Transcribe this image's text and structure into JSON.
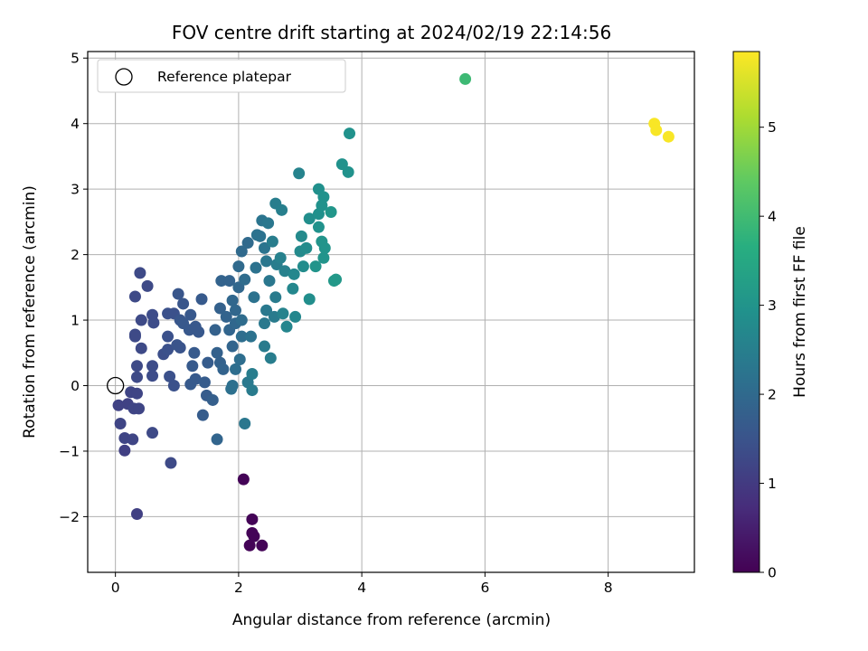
{
  "chart_data": {
    "type": "scatter",
    "title": "FOV centre drift starting at 2024/02/19 22:14:56",
    "xlabel": "Angular distance from reference (arcmin)",
    "ylabel": "Rotation from reference (arcmin)",
    "xlim": [
      -0.45,
      9.4
    ],
    "ylim": [
      -2.85,
      5.1
    ],
    "xticks": [
      0,
      2,
      4,
      6,
      8
    ],
    "yticks": [
      -2,
      -1,
      0,
      1,
      2,
      3,
      4,
      5
    ],
    "grid": true,
    "legend": {
      "position": "top-left",
      "entries": [
        "Reference platepar"
      ]
    },
    "reference_point": {
      "x": 0,
      "y": 0
    },
    "colorbar": {
      "label": "Hours from first FF file",
      "range": [
        0,
        5.85
      ],
      "ticks": [
        0,
        1,
        2,
        3,
        4,
        5
      ],
      "colormap": "viridis"
    },
    "points": [
      {
        "x": 2.08,
        "y": -1.43,
        "c": 0.05
      },
      {
        "x": 2.22,
        "y": -2.04,
        "c": 0.05
      },
      {
        "x": 2.22,
        "y": -2.25,
        "c": 0.05
      },
      {
        "x": 2.25,
        "y": -2.3,
        "c": 0.05
      },
      {
        "x": 2.18,
        "y": -2.44,
        "c": 0.05
      },
      {
        "x": 2.38,
        "y": -2.44,
        "c": 0.05
      },
      {
        "x": 0.35,
        "y": -1.96,
        "c": 1.1
      },
      {
        "x": 0.15,
        "y": -0.99,
        "c": 1.1
      },
      {
        "x": 0.9,
        "y": -1.18,
        "c": 1.3
      },
      {
        "x": 0.05,
        "y": -0.3,
        "c": 1.15
      },
      {
        "x": 0.2,
        "y": -0.28,
        "c": 1.15
      },
      {
        "x": 0.25,
        "y": -0.1,
        "c": 1.2
      },
      {
        "x": 0.35,
        "y": -0.12,
        "c": 1.2
      },
      {
        "x": 0.3,
        "y": -0.35,
        "c": 1.2
      },
      {
        "x": 0.38,
        "y": -0.35,
        "c": 1.2
      },
      {
        "x": 0.08,
        "y": -0.58,
        "c": 1.2
      },
      {
        "x": 0.15,
        "y": -0.8,
        "c": 1.2
      },
      {
        "x": 0.28,
        "y": -0.82,
        "c": 1.2
      },
      {
        "x": 0.6,
        "y": -0.72,
        "c": 1.3
      },
      {
        "x": 0.35,
        "y": 0.13,
        "c": 1.3
      },
      {
        "x": 0.35,
        "y": 0.3,
        "c": 1.3
      },
      {
        "x": 0.42,
        "y": 0.57,
        "c": 1.3
      },
      {
        "x": 0.32,
        "y": 0.78,
        "c": 1.3
      },
      {
        "x": 0.32,
        "y": 0.75,
        "c": 1.3
      },
      {
        "x": 0.42,
        "y": 1.0,
        "c": 1.3
      },
      {
        "x": 0.32,
        "y": 1.36,
        "c": 1.3
      },
      {
        "x": 0.4,
        "y": 1.72,
        "c": 1.3
      },
      {
        "x": 0.52,
        "y": 1.52,
        "c": 1.3
      },
      {
        "x": 0.6,
        "y": 1.08,
        "c": 1.35
      },
      {
        "x": 0.62,
        "y": 0.96,
        "c": 1.35
      },
      {
        "x": 0.6,
        "y": 0.3,
        "c": 1.35
      },
      {
        "x": 0.6,
        "y": 0.15,
        "c": 1.35
      },
      {
        "x": 0.78,
        "y": 0.48,
        "c": 1.4
      },
      {
        "x": 0.85,
        "y": 0.55,
        "c": 1.45
      },
      {
        "x": 0.85,
        "y": 0.75,
        "c": 1.45
      },
      {
        "x": 0.85,
        "y": 1.1,
        "c": 1.45
      },
      {
        "x": 0.95,
        "y": 1.1,
        "c": 1.45
      },
      {
        "x": 0.88,
        "y": 0.14,
        "c": 1.45
      },
      {
        "x": 0.95,
        "y": 0.0,
        "c": 1.45
      },
      {
        "x": 1.0,
        "y": 0.62,
        "c": 1.5
      },
      {
        "x": 1.05,
        "y": 0.58,
        "c": 1.5
      },
      {
        "x": 1.05,
        "y": 1.0,
        "c": 1.55
      },
      {
        "x": 1.02,
        "y": 1.4,
        "c": 1.55
      },
      {
        "x": 1.1,
        "y": 1.25,
        "c": 1.55
      },
      {
        "x": 1.1,
        "y": 0.95,
        "c": 1.6
      },
      {
        "x": 1.2,
        "y": 0.85,
        "c": 1.6
      },
      {
        "x": 1.22,
        "y": 1.08,
        "c": 1.6
      },
      {
        "x": 1.3,
        "y": 0.9,
        "c": 1.6
      },
      {
        "x": 1.35,
        "y": 0.82,
        "c": 1.6
      },
      {
        "x": 1.4,
        "y": 1.32,
        "c": 1.65
      },
      {
        "x": 1.28,
        "y": 0.5,
        "c": 1.65
      },
      {
        "x": 1.25,
        "y": 0.3,
        "c": 1.65
      },
      {
        "x": 1.22,
        "y": 0.02,
        "c": 1.65
      },
      {
        "x": 1.3,
        "y": 0.1,
        "c": 1.65
      },
      {
        "x": 1.42,
        "y": -0.45,
        "c": 1.7
      },
      {
        "x": 1.48,
        "y": -0.15,
        "c": 1.7
      },
      {
        "x": 1.45,
        "y": 0.05,
        "c": 1.7
      },
      {
        "x": 1.5,
        "y": 0.35,
        "c": 1.7
      },
      {
        "x": 1.58,
        "y": -0.22,
        "c": 1.75
      },
      {
        "x": 1.65,
        "y": -0.82,
        "c": 1.9
      },
      {
        "x": 1.62,
        "y": 0.85,
        "c": 1.8
      },
      {
        "x": 1.65,
        "y": 0.5,
        "c": 1.8
      },
      {
        "x": 1.7,
        "y": 0.35,
        "c": 1.8
      },
      {
        "x": 1.75,
        "y": 0.25,
        "c": 1.85
      },
      {
        "x": 1.7,
        "y": 1.18,
        "c": 1.8
      },
      {
        "x": 1.72,
        "y": 1.6,
        "c": 1.85
      },
      {
        "x": 1.85,
        "y": 1.6,
        "c": 1.85
      },
      {
        "x": 1.8,
        "y": 1.05,
        "c": 1.85
      },
      {
        "x": 1.85,
        "y": 0.85,
        "c": 1.9
      },
      {
        "x": 1.9,
        "y": 0.6,
        "c": 1.9
      },
      {
        "x": 1.9,
        "y": 1.3,
        "c": 1.95
      },
      {
        "x": 1.95,
        "y": 1.15,
        "c": 1.95
      },
      {
        "x": 1.95,
        "y": 0.95,
        "c": 1.95
      },
      {
        "x": 2.0,
        "y": 1.5,
        "c": 1.95
      },
      {
        "x": 2.0,
        "y": 1.82,
        "c": 2.0
      },
      {
        "x": 2.05,
        "y": 2.05,
        "c": 2.0
      },
      {
        "x": 2.15,
        "y": 2.18,
        "c": 2.0
      },
      {
        "x": 2.1,
        "y": 1.62,
        "c": 2.05
      },
      {
        "x": 2.05,
        "y": 1.0,
        "c": 2.05
      },
      {
        "x": 2.05,
        "y": 0.75,
        "c": 2.1
      },
      {
        "x": 2.02,
        "y": 0.4,
        "c": 2.1
      },
      {
        "x": 1.95,
        "y": 0.25,
        "c": 2.1
      },
      {
        "x": 1.9,
        "y": 0.0,
        "c": 2.15
      },
      {
        "x": 1.88,
        "y": -0.05,
        "c": 2.15
      },
      {
        "x": 2.1,
        "y": -0.58,
        "c": 2.3
      },
      {
        "x": 2.15,
        "y": 0.05,
        "c": 2.35
      },
      {
        "x": 2.22,
        "y": -0.07,
        "c": 2.4
      },
      {
        "x": 2.22,
        "y": 0.18,
        "c": 2.45
      },
      {
        "x": 2.2,
        "y": 0.75,
        "c": 2.2
      },
      {
        "x": 2.25,
        "y": 1.35,
        "c": 2.2
      },
      {
        "x": 2.28,
        "y": 1.8,
        "c": 2.2
      },
      {
        "x": 2.3,
        "y": 2.3,
        "c": 2.2
      },
      {
        "x": 2.35,
        "y": 2.28,
        "c": 2.2
      },
      {
        "x": 2.38,
        "y": 2.52,
        "c": 2.25
      },
      {
        "x": 2.42,
        "y": 2.1,
        "c": 2.25
      },
      {
        "x": 2.45,
        "y": 1.9,
        "c": 2.3
      },
      {
        "x": 2.48,
        "y": 2.48,
        "c": 2.3
      },
      {
        "x": 2.5,
        "y": 1.6,
        "c": 2.3
      },
      {
        "x": 2.45,
        "y": 1.15,
        "c": 2.35
      },
      {
        "x": 2.42,
        "y": 0.95,
        "c": 2.35
      },
      {
        "x": 2.42,
        "y": 0.6,
        "c": 2.4
      },
      {
        "x": 2.52,
        "y": 0.42,
        "c": 2.45
      },
      {
        "x": 2.58,
        "y": 1.05,
        "c": 2.4
      },
      {
        "x": 2.6,
        "y": 1.35,
        "c": 2.4
      },
      {
        "x": 2.62,
        "y": 1.85,
        "c": 2.45
      },
      {
        "x": 2.55,
        "y": 2.2,
        "c": 2.45
      },
      {
        "x": 2.6,
        "y": 2.78,
        "c": 2.45
      },
      {
        "x": 2.7,
        "y": 2.68,
        "c": 2.5
      },
      {
        "x": 2.68,
        "y": 1.95,
        "c": 2.55
      },
      {
        "x": 2.75,
        "y": 1.75,
        "c": 2.55
      },
      {
        "x": 2.72,
        "y": 1.1,
        "c": 2.6
      },
      {
        "x": 2.78,
        "y": 0.9,
        "c": 2.65
      },
      {
        "x": 2.88,
        "y": 1.48,
        "c": 2.7
      },
      {
        "x": 2.9,
        "y": 1.7,
        "c": 2.7
      },
      {
        "x": 2.92,
        "y": 1.05,
        "c": 2.7
      },
      {
        "x": 2.98,
        "y": 3.24,
        "c": 2.6
      },
      {
        "x": 3.0,
        "y": 2.05,
        "c": 2.75
      },
      {
        "x": 3.02,
        "y": 2.28,
        "c": 2.75
      },
      {
        "x": 3.05,
        "y": 1.82,
        "c": 2.8
      },
      {
        "x": 3.1,
        "y": 2.1,
        "c": 2.8
      },
      {
        "x": 3.15,
        "y": 1.32,
        "c": 2.85
      },
      {
        "x": 3.15,
        "y": 2.55,
        "c": 2.85
      },
      {
        "x": 3.3,
        "y": 2.62,
        "c": 2.9
      },
      {
        "x": 3.3,
        "y": 3.0,
        "c": 2.9
      },
      {
        "x": 3.35,
        "y": 2.75,
        "c": 2.95
      },
      {
        "x": 3.38,
        "y": 2.88,
        "c": 2.95
      },
      {
        "x": 3.3,
        "y": 2.42,
        "c": 2.95
      },
      {
        "x": 3.35,
        "y": 2.2,
        "c": 3.0
      },
      {
        "x": 3.4,
        "y": 2.1,
        "c": 3.0
      },
      {
        "x": 3.38,
        "y": 1.95,
        "c": 3.0
      },
      {
        "x": 3.25,
        "y": 1.82,
        "c": 3.0
      },
      {
        "x": 3.5,
        "y": 2.65,
        "c": 3.05
      },
      {
        "x": 3.55,
        "y": 1.6,
        "c": 3.1
      },
      {
        "x": 3.58,
        "y": 1.62,
        "c": 3.1
      },
      {
        "x": 3.68,
        "y": 3.38,
        "c": 2.95
      },
      {
        "x": 3.78,
        "y": 3.26,
        "c": 2.95
      },
      {
        "x": 3.8,
        "y": 3.85,
        "c": 2.95
      },
      {
        "x": 5.68,
        "y": 4.68,
        "c": 3.95
      },
      {
        "x": 8.75,
        "y": 4.0,
        "c": 5.8
      },
      {
        "x": 8.78,
        "y": 3.9,
        "c": 5.8
      },
      {
        "x": 8.98,
        "y": 3.8,
        "c": 5.8
      }
    ]
  }
}
